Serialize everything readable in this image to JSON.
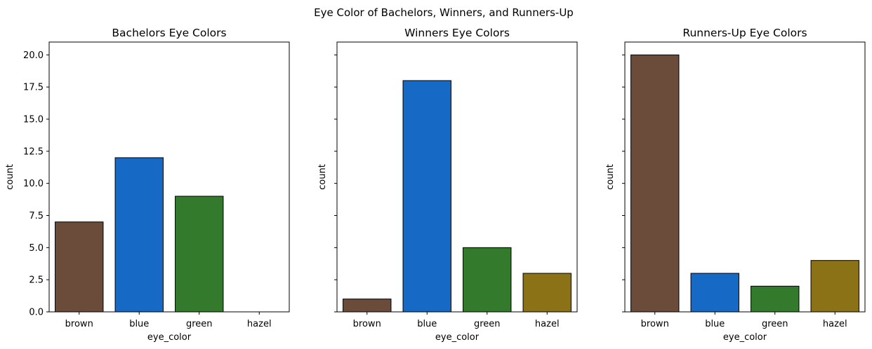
{
  "figure": {
    "suptitle": "Eye Color of Bachelors, Winners, and Runners-Up"
  },
  "colors": {
    "brown": "#6b4c3b",
    "blue": "#1769c6",
    "green": "#337a2c",
    "hazel": "#8b7216",
    "edge": "#000000"
  },
  "chart_data": [
    {
      "type": "bar",
      "title": "Bachelors Eye Colors",
      "xlabel": "eye_color",
      "ylabel": "count",
      "categories": [
        "brown",
        "blue",
        "green",
        "hazel"
      ],
      "values": [
        7,
        12,
        9,
        0
      ],
      "ylim": [
        0,
        21
      ],
      "yticks": [
        0.0,
        2.5,
        5.0,
        7.5,
        10.0,
        12.5,
        15.0,
        17.5,
        20.0
      ],
      "yticklabels": [
        "0.0",
        "2.5",
        "5.0",
        "7.5",
        "10.0",
        "12.5",
        "15.0",
        "17.5",
        "20.0"
      ],
      "grid": false,
      "legend": "none"
    },
    {
      "type": "bar",
      "title": "Winners Eye Colors",
      "xlabel": "eye_color",
      "ylabel": "count",
      "categories": [
        "brown",
        "blue",
        "green",
        "hazel"
      ],
      "values": [
        1,
        18,
        5,
        3
      ],
      "ylim": [
        0,
        21
      ],
      "yticks": [
        0.0,
        2.5,
        5.0,
        7.5,
        10.0,
        12.5,
        15.0,
        17.5,
        20.0
      ],
      "grid": false,
      "legend": "none"
    },
    {
      "type": "bar",
      "title": "Runners-Up Eye Colors",
      "xlabel": "eye_color",
      "ylabel": "count",
      "categories": [
        "brown",
        "blue",
        "green",
        "hazel"
      ],
      "values": [
        20,
        3,
        2,
        4
      ],
      "ylim": [
        0,
        21
      ],
      "yticks": [
        0.0,
        2.5,
        5.0,
        7.5,
        10.0,
        12.5,
        15.0,
        17.5,
        20.0
      ],
      "grid": false,
      "legend": "none"
    }
  ]
}
